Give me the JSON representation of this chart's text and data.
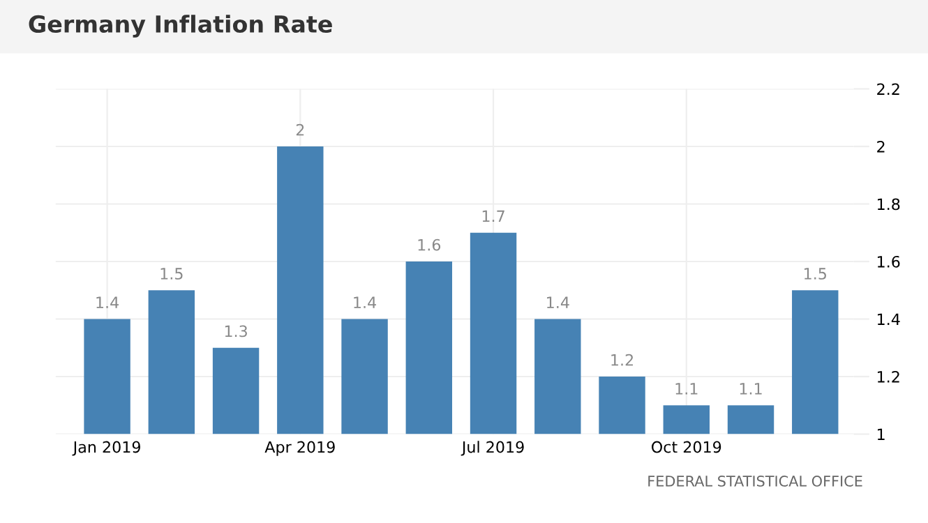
{
  "chart_data": {
    "type": "bar",
    "title": "Germany Inflation Rate",
    "categories": [
      "Jan 2019",
      null,
      null,
      "Apr 2019",
      null,
      null,
      "Jul 2019",
      null,
      null,
      "Oct 2019",
      null,
      null
    ],
    "values": [
      1.4,
      1.5,
      1.3,
      2,
      1.4,
      1.6,
      1.7,
      1.4,
      1.2,
      1.1,
      1.1,
      1.5
    ],
    "color": "#4682b4",
    "data_labels": true,
    "grid": true,
    "ylim": [
      1,
      2.2
    ],
    "yticks": [
      1,
      1.2,
      1.4,
      1.6,
      1.8,
      2,
      2.2
    ],
    "annotations": [
      "FEDERAL STATISTICAL OFFICE"
    ]
  }
}
